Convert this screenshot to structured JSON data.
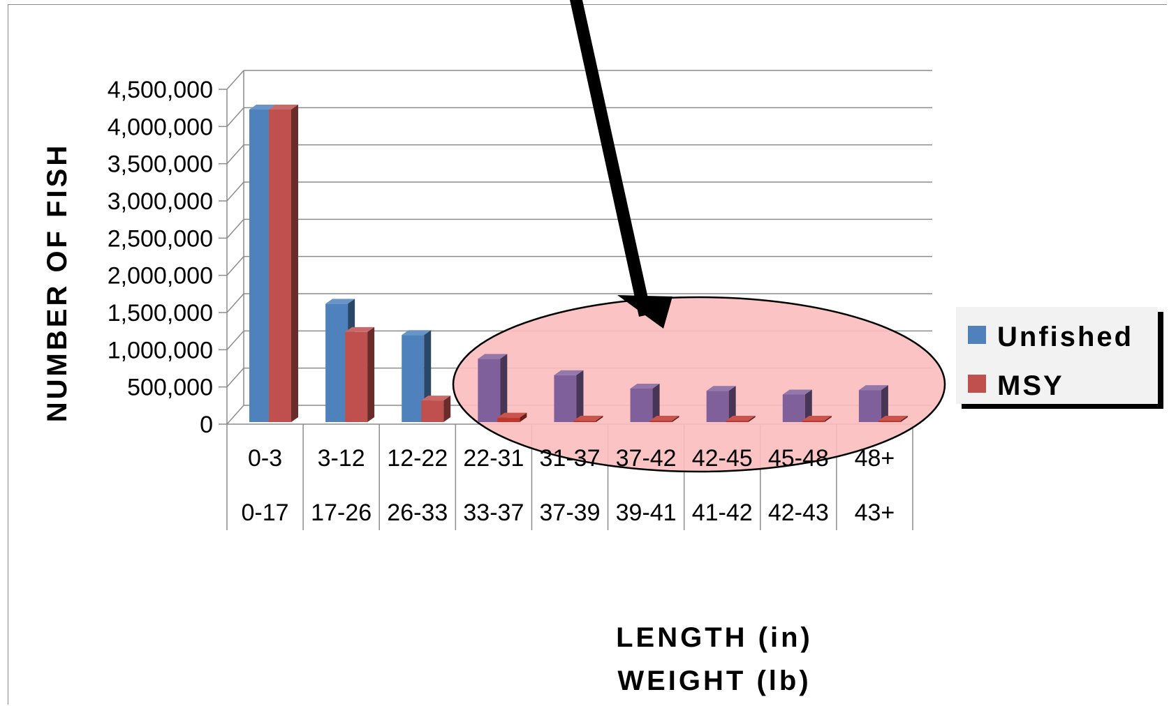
{
  "chart_data": {
    "type": "bar",
    "ylabel": "NUMBER OF FISH",
    "xlabel_lines": [
      "LENGTH (in)",
      "WEIGHT (lb)"
    ],
    "categories_length": [
      "0-3",
      "3-12",
      "12-22",
      "22-31",
      "31-37",
      "37-42",
      "42-45",
      "45-48",
      "48+"
    ],
    "categories_weight": [
      "0-17",
      "17-26",
      "26-33",
      "33-37",
      "37-39",
      "39-41",
      "41-42",
      "42-43",
      "43+"
    ],
    "y_ticks": [
      "0",
      "500,000",
      "1,000,000",
      "1,500,000",
      "2,000,000",
      "2,500,000",
      "3,000,000",
      "3,500,000",
      "4,000,000",
      "4,500,000"
    ],
    "ylim": [
      0,
      4500000
    ],
    "series": [
      {
        "name": "Unfished",
        "values": [
          4200000,
          1590000,
          1170000,
          850000,
          630000,
          450000,
          420000,
          370000,
          430000
        ]
      },
      {
        "name": "MSY",
        "values": [
          4200000,
          1210000,
          290000,
          60000,
          20000,
          5000,
          3000,
          2000,
          2000
        ]
      }
    ],
    "highlighted_categories": [
      "22-31",
      "31-37",
      "37-42",
      "42-45",
      "45-48",
      "48+"
    ],
    "legend_position": "right",
    "grid": true,
    "colors": {
      "unfished": "#4f81bd",
      "msy": "#c0504d",
      "highlight_unfished": "#80609a",
      "highlight_ellipse": "#fbbcbc",
      "arrow": "#000000"
    }
  }
}
